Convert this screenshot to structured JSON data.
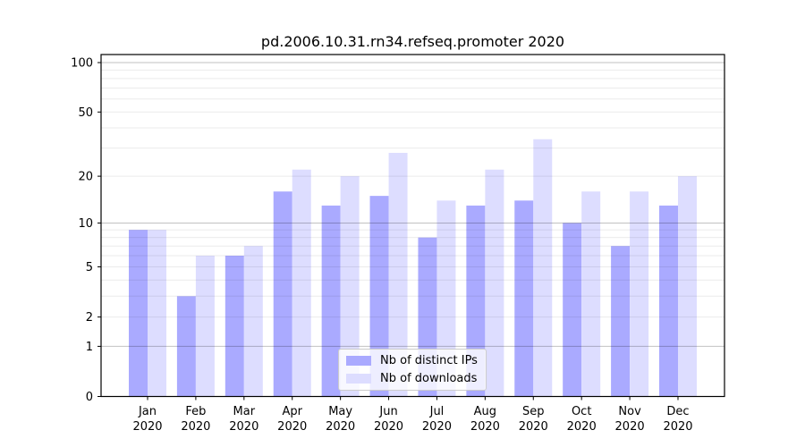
{
  "chart_data": {
    "type": "bar",
    "title": "pd.2006.10.31.rn34.refseq.promoter 2020",
    "categories": [
      "Jan 2020",
      "Feb 2020",
      "Mar 2020",
      "Apr 2020",
      "May 2020",
      "Jun 2020",
      "Jul 2020",
      "Aug 2020",
      "Sep 2020",
      "Oct 2020",
      "Nov 2020",
      "Dec 2020"
    ],
    "series": [
      {
        "name": "Nb of distinct IPs",
        "color": "#aaaaff",
        "values": [
          9,
          3,
          6,
          16,
          13,
          15,
          8,
          13,
          14,
          10,
          7,
          13
        ]
      },
      {
        "name": "Nb of downloads",
        "color": "#ddddff",
        "values": [
          9,
          6,
          7,
          22,
          20,
          28,
          14,
          22,
          34,
          16,
          16,
          20
        ]
      }
    ],
    "xlabel": "",
    "ylabel": "",
    "y_scale": "log1p",
    "ylim": [
      0,
      112
    ],
    "y_tick_labels": [
      "0",
      "1",
      "2",
      "5",
      "10",
      "20",
      "50",
      "100"
    ],
    "y_ticks": [
      0,
      1,
      2,
      5,
      10,
      20,
      50,
      100
    ],
    "y_major_grid": [
      1,
      10,
      100
    ],
    "y_minor_grid": [
      2,
      3,
      4,
      5,
      6,
      7,
      8,
      9,
      20,
      30,
      40,
      50,
      60,
      70,
      80,
      90
    ],
    "grid": true,
    "legend_position": "inside lower center"
  }
}
